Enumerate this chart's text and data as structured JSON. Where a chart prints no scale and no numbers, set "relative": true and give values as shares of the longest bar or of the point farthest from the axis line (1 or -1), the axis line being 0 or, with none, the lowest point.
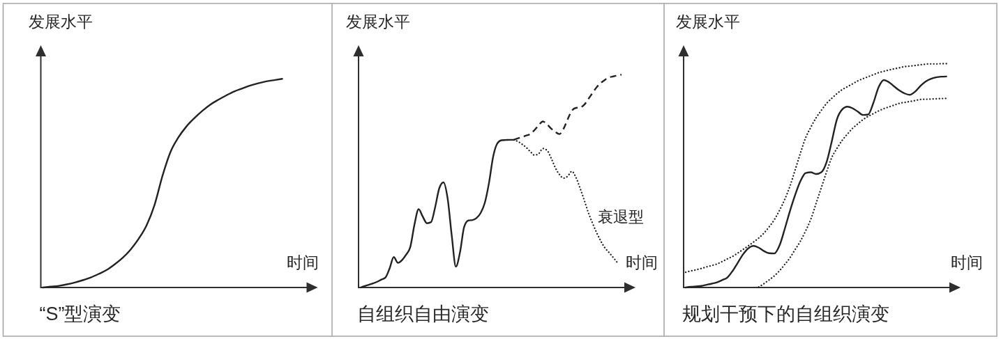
{
  "chart_data": [
    {
      "type": "line",
      "title": "“S”型演变",
      "xlabel": "时间",
      "ylabel": "发展水平",
      "relative": true,
      "categories": [
        null,
        null,
        null,
        null,
        null,
        null,
        null,
        null,
        null,
        null,
        null,
        null,
        null,
        null,
        null,
        null,
        null,
        null,
        null,
        null,
        null,
        null,
        null,
        null,
        null,
        null,
        null,
        null,
        null,
        null,
        null
      ],
      "series": [
        {
          "color": "#222222",
          "line_style": "solid",
          "values": [
            0,
            0.004,
            0.008,
            0.015,
            0.024,
            0.035,
            0.048,
            0.065,
            0.084,
            0.111,
            0.142,
            0.182,
            0.233,
            0.298,
            0.396,
            0.536,
            0.65,
            0.72,
            0.772,
            0.812,
            0.847,
            0.877,
            0.9,
            0.921,
            0.94,
            0.954,
            0.968,
            0.979,
            0.988,
            0.994,
            1.0
          ]
        }
      ]
    },
    {
      "type": "line",
      "title": "自组织自由演变",
      "xlabel": "时间",
      "ylabel": "发展水平",
      "relative": true,
      "categories": [
        null,
        null,
        null,
        null,
        null,
        null,
        null,
        null,
        null,
        null,
        null,
        null,
        null,
        null,
        null,
        null,
        null,
        null,
        null,
        null,
        null,
        null,
        null,
        null,
        null,
        null,
        null,
        null,
        null,
        null,
        null,
        null,
        null,
        null,
        null,
        null,
        null,
        null,
        null,
        null,
        null,
        null,
        null,
        null,
        null,
        null,
        null,
        null,
        null,
        null,
        null,
        null,
        null,
        null,
        null,
        null,
        null,
        null,
        null,
        null,
        null,
        null,
        null,
        null
      ],
      "series": [
        {
          "color": "#222222",
          "line_style": "solid",
          "values": [
            0,
            0.007,
            0.013,
            0.019,
            0.027,
            0.037,
            0.047,
            0.09,
            0.143,
            0.116,
            0.129,
            0.155,
            0.191,
            0.296,
            0.368,
            0.333,
            0.302,
            0.307,
            0.378,
            0.467,
            0.494,
            0.419,
            0.244,
            0.098,
            0.166,
            0.285,
            0.315,
            0.317,
            0.327,
            0.351,
            0.399,
            0.492,
            0.615,
            0.677,
            0.692,
            0.693,
            0.694,
            0.694,
            null,
            null,
            null,
            null,
            null,
            null,
            null,
            null,
            null,
            null,
            null,
            null,
            null,
            null,
            null,
            null,
            null,
            null,
            null,
            null,
            null,
            null,
            null,
            null,
            null,
            null
          ]
        },
        {
          "color": "#222222",
          "line_style": "dashed",
          "values": [
            null,
            null,
            null,
            null,
            null,
            null,
            null,
            null,
            null,
            null,
            null,
            null,
            null,
            null,
            null,
            null,
            null,
            null,
            null,
            null,
            null,
            null,
            null,
            null,
            null,
            null,
            null,
            null,
            null,
            null,
            null,
            null,
            null,
            null,
            null,
            null,
            null,
            0.694,
            0.701,
            0.707,
            0.714,
            0.721,
            0.74,
            0.763,
            0.78,
            0.767,
            0.747,
            0.731,
            0.721,
            0.746,
            0.791,
            0.831,
            0.844,
            0.846,
            0.859,
            0.886,
            0.914,
            0.941,
            0.961,
            0.976,
            0.987,
            0.992,
            0.996,
            1.0
          ]
        },
        {
          "name": "衰退型",
          "color": "#222222",
          "line_style": "dotted",
          "values": [
            null,
            null,
            null,
            null,
            null,
            null,
            null,
            null,
            null,
            null,
            null,
            null,
            null,
            null,
            null,
            null,
            null,
            null,
            null,
            null,
            null,
            null,
            null,
            null,
            null,
            null,
            null,
            null,
            null,
            null,
            null,
            null,
            null,
            null,
            null,
            null,
            null,
            0.694,
            0.686,
            0.673,
            0.658,
            0.638,
            0.622,
            0.629,
            0.653,
            0.645,
            0.608,
            0.563,
            0.531,
            0.514,
            0.523,
            0.546,
            0.517,
            0.466,
            0.41,
            0.351,
            0.302,
            0.257,
            0.218,
            0.186,
            0.164,
            0.141,
            0.117,
            null
          ]
        }
      ]
    },
    {
      "type": "line",
      "title": "规划干预下的自组织演变",
      "xlabel": "时间",
      "ylabel": "发展水平",
      "relative": true,
      "categories": [
        null,
        null,
        null,
        null,
        null,
        null,
        null,
        null,
        null,
        null,
        null,
        null,
        null,
        null,
        null,
        null,
        null,
        null,
        null,
        null,
        null,
        null,
        null,
        null,
        null,
        null,
        null,
        null,
        null,
        null,
        null,
        null,
        null,
        null,
        null,
        null,
        null,
        null,
        null,
        null,
        null,
        null,
        null,
        null,
        null,
        null,
        null,
        null,
        null,
        null,
        null
      ],
      "series": [
        {
          "color": "#222222",
          "line_style": "solid",
          "values": [
            0,
            0.003,
            0.005,
            0.007,
            0.012,
            0.017,
            0.023,
            0.033,
            0.045,
            0.074,
            0.111,
            0.148,
            0.175,
            0.186,
            0.178,
            0.163,
            0.153,
            0.152,
            0.188,
            0.262,
            0.342,
            0.414,
            0.475,
            0.511,
            0.515,
            0.507,
            0.515,
            0.559,
            0.651,
            0.751,
            0.795,
            0.808,
            0.801,
            0.786,
            0.771,
            0.773,
            0.825,
            0.895,
            0.927,
            0.917,
            0.898,
            0.88,
            0.867,
            0.861,
            0.875,
            0.9,
            0.92,
            0.932,
            0.939,
            0.942,
            0.943
          ]
        },
        {
          "color": "#222222",
          "line_style": "dotted",
          "values": [
            0.068,
            0.074,
            0.079,
            0.085,
            0.092,
            0.098,
            0.105,
            0.116,
            0.128,
            0.139,
            0.154,
            0.17,
            0.186,
            0.203,
            0.221,
            0.243,
            0.271,
            0.303,
            0.345,
            0.394,
            0.453,
            0.526,
            0.6,
            0.669,
            0.716,
            0.758,
            0.791,
            0.822,
            0.845,
            0.866,
            0.884,
            0.897,
            0.91,
            0.923,
            0.933,
            0.942,
            0.951,
            0.96,
            0.966,
            0.972,
            0.977,
            0.982,
            0.987,
            0.989,
            0.992,
            0.995,
            0.998,
            0.999,
            0.999,
            1.0,
            1.0
          ]
        },
        {
          "color": "#222222",
          "line_style": "dotted",
          "values": [
            null,
            null,
            null,
            null,
            null,
            null,
            null,
            null,
            null,
            null,
            null,
            null,
            null,
            null,
            0.002,
            0.017,
            0.034,
            0.052,
            0.075,
            0.103,
            0.133,
            0.17,
            0.207,
            0.253,
            0.305,
            0.375,
            0.445,
            0.515,
            0.58,
            0.621,
            0.657,
            0.685,
            0.711,
            0.731,
            0.75,
            0.765,
            0.777,
            0.789,
            0.799,
            0.807,
            0.815,
            0.823,
            0.827,
            0.831,
            0.835,
            0.84,
            0.841,
            0.842,
            0.843,
            0.844,
            0.845
          ]
        }
      ]
    }
  ]
}
